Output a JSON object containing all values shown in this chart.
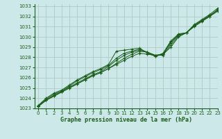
{
  "xlabel": "Graphe pression niveau de la mer (hPa)",
  "xlim": [
    -0.5,
    23
  ],
  "ylim": [
    1023,
    1033.2
  ],
  "yticks": [
    1023,
    1024,
    1025,
    1026,
    1027,
    1028,
    1029,
    1030,
    1031,
    1032,
    1033
  ],
  "xticks": [
    0,
    1,
    2,
    3,
    4,
    5,
    6,
    7,
    8,
    9,
    10,
    11,
    12,
    13,
    14,
    15,
    16,
    17,
    18,
    19,
    20,
    21,
    22,
    23
  ],
  "bg_color": "#cce8e8",
  "grid_color": "#b0c8c8",
  "line_color": "#1a5c1a",
  "marker": "+",
  "lines": [
    [
      1023.2,
      1023.8,
      1024.2,
      1024.6,
      1025.0,
      1025.4,
      1025.8,
      1026.2,
      1026.5,
      1026.9,
      1027.3,
      1027.7,
      1028.1,
      1028.4,
      1028.3,
      1028.2,
      1028.3,
      1029.0,
      1030.0,
      1030.4,
      1031.0,
      1031.5,
      1032.0,
      1032.5
    ],
    [
      1023.2,
      1023.8,
      1024.2,
      1024.6,
      1025.0,
      1025.4,
      1025.8,
      1026.2,
      1026.5,
      1026.9,
      1027.4,
      1027.9,
      1028.3,
      1028.6,
      1028.5,
      1028.2,
      1028.2,
      1029.2,
      1030.1,
      1030.4,
      1031.1,
      1031.6,
      1032.1,
      1032.6
    ],
    [
      1023.2,
      1023.8,
      1024.3,
      1024.7,
      1025.1,
      1025.5,
      1025.9,
      1026.3,
      1026.6,
      1027.1,
      1027.7,
      1028.2,
      1028.5,
      1028.7,
      1028.5,
      1028.2,
      1028.3,
      1029.4,
      1030.2,
      1030.4,
      1031.1,
      1031.6,
      1032.1,
      1032.6
    ],
    [
      1023.3,
      1023.9,
      1024.4,
      1024.7,
      1025.2,
      1025.7,
      1026.1,
      1026.5,
      1026.8,
      1027.2,
      1027.9,
      1028.4,
      1028.6,
      1028.8,
      1028.5,
      1028.1,
      1028.3,
      1029.5,
      1030.2,
      1030.4,
      1031.1,
      1031.6,
      1032.0,
      1032.7
    ],
    [
      1023.3,
      1024.0,
      1024.5,
      1024.8,
      1025.3,
      1025.8,
      1026.2,
      1026.6,
      1026.9,
      1027.3,
      1028.6,
      1028.7,
      1028.8,
      1028.9,
      1028.4,
      1028.1,
      1028.4,
      1029.6,
      1030.3,
      1030.4,
      1031.2,
      1031.7,
      1032.2,
      1032.8
    ]
  ]
}
